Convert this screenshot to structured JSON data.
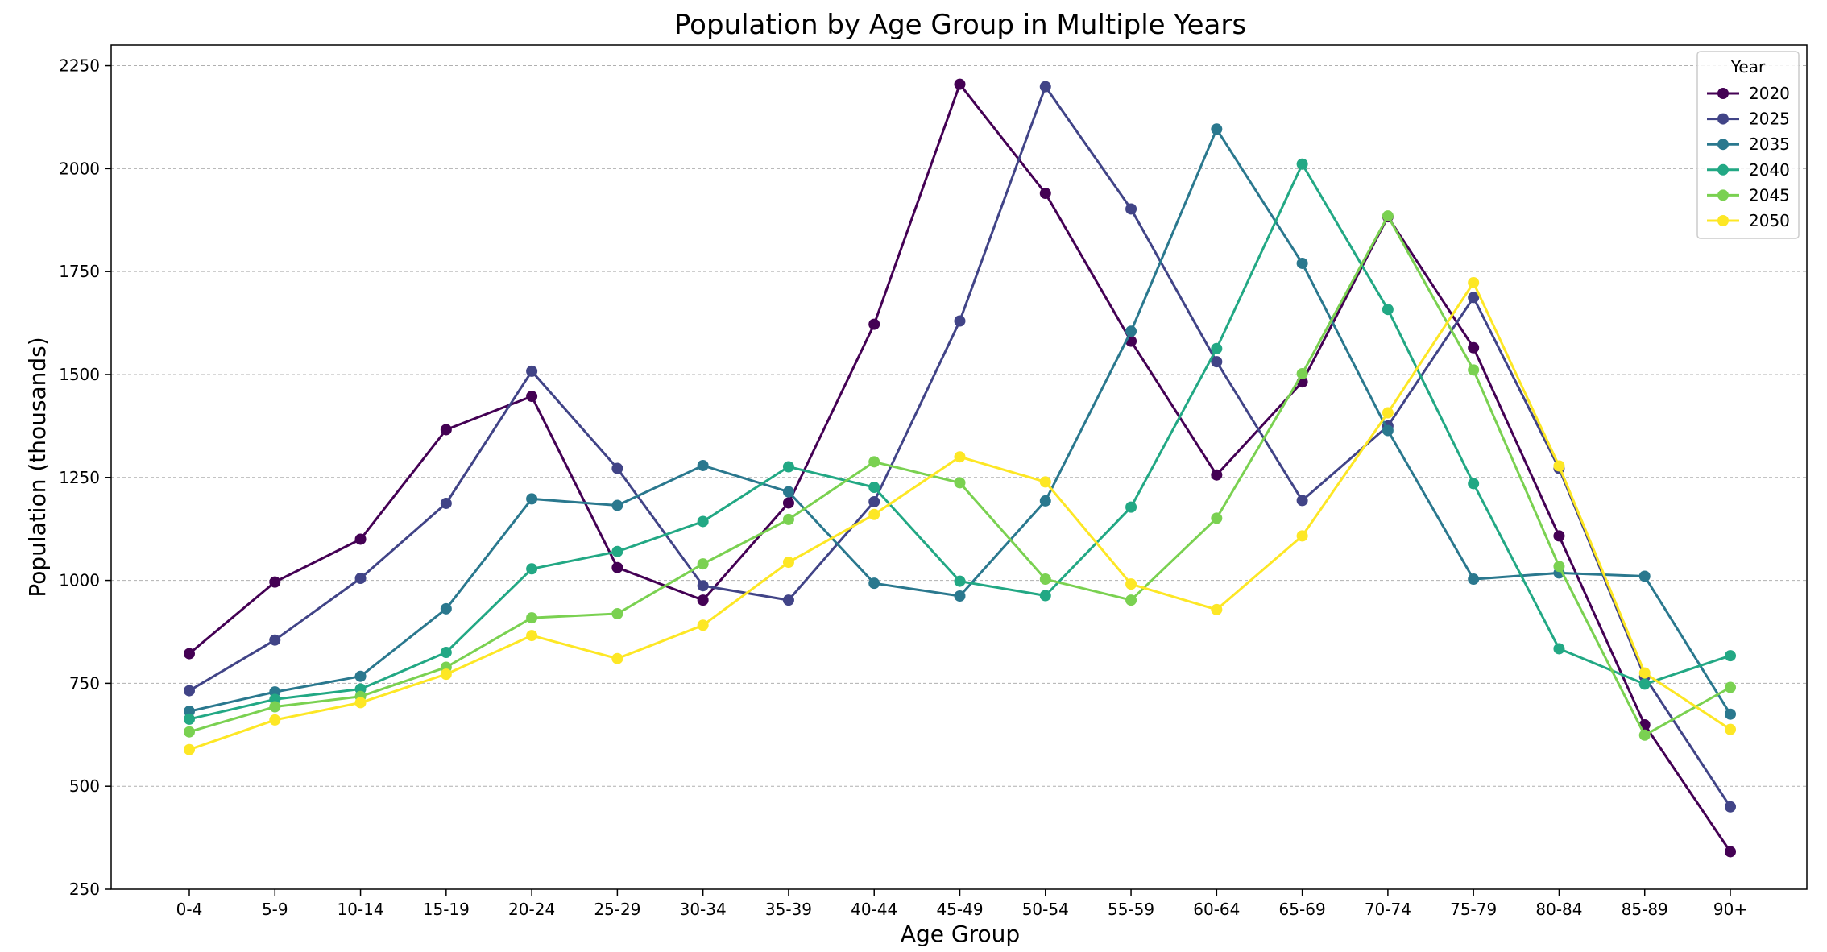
{
  "chart_data": {
    "type": "line",
    "title": "Population by Age Group in Multiple Years",
    "xlabel": "Age Group",
    "ylabel": "Population (thousands)",
    "categories": [
      "0-4",
      "5-9",
      "10-14",
      "15-19",
      "20-24",
      "25-29",
      "30-34",
      "35-39",
      "40-44",
      "45-49",
      "50-54",
      "55-59",
      "60-64",
      "65-69",
      "70-74",
      "75-79",
      "80-84",
      "85-89",
      "90+"
    ],
    "ylim": [
      250,
      2300
    ],
    "yticks": [
      250,
      500,
      750,
      1000,
      1250,
      1500,
      1750,
      2000,
      2250
    ],
    "grid": "horizontal dashed",
    "legend": {
      "title": "Year",
      "placement": "top-right"
    },
    "series": [
      {
        "name": "2020",
        "color": "#440154",
        "values": [
          822,
          996,
          1100,
          1366,
          1447,
          1031,
          952,
          1188,
          1622,
          2205,
          1940,
          1581,
          1256,
          1482,
          1883,
          1565,
          1108,
          649,
          341
        ]
      },
      {
        "name": "2025",
        "color": "#414487",
        "values": [
          732,
          855,
          1005,
          1187,
          1508,
          1272,
          987,
          952,
          1191,
          1630,
          2199,
          1902,
          1531,
          1194,
          1375,
          1687,
          1272,
          766,
          450
        ]
      },
      {
        "name": "2035",
        "color": "#2a788e",
        "values": [
          682,
          729,
          767,
          931,
          1198,
          1182,
          1279,
          1215,
          993,
          962,
          1193,
          1605,
          2096,
          1770,
          1364,
          1003,
          1018,
          1010,
          675
        ]
      },
      {
        "name": "2040",
        "color": "#22a884",
        "values": [
          663,
          711,
          736,
          825,
          1028,
          1070,
          1143,
          1276,
          1226,
          998,
          963,
          1178,
          1563,
          2011,
          1658,
          1235,
          834,
          748,
          817
        ]
      },
      {
        "name": "2045",
        "color": "#7ad151",
        "values": [
          632,
          693,
          718,
          789,
          909,
          919,
          1040,
          1148,
          1288,
          1237,
          1003,
          952,
          1151,
          1502,
          1885,
          1511,
          1034,
          624,
          740
        ]
      },
      {
        "name": "2050",
        "color": "#fde725",
        "values": [
          589,
          661,
          703,
          772,
          866,
          810,
          891,
          1044,
          1160,
          1300,
          1239,
          991,
          929,
          1108,
          1407,
          1723,
          1278,
          775,
          638
        ]
      }
    ]
  }
}
